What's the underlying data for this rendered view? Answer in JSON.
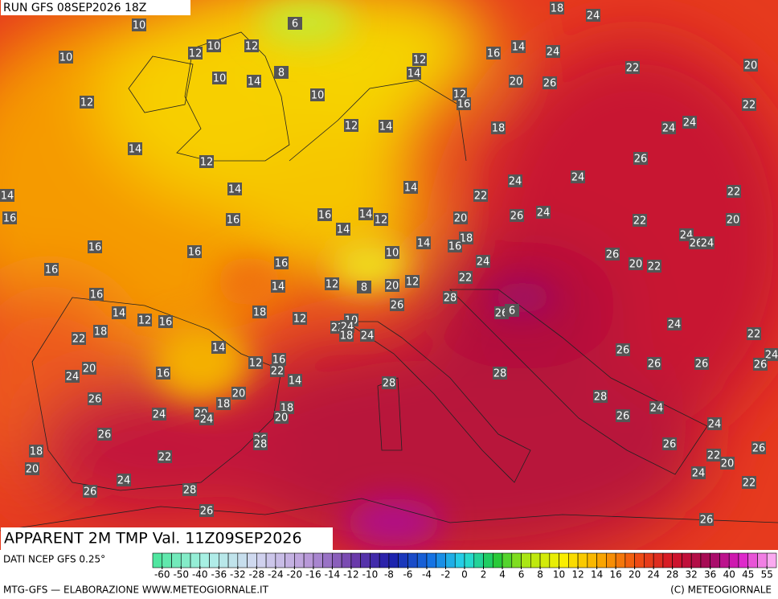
{
  "header": {
    "run": "RUN GFS 08SEP2026 18Z"
  },
  "map": {
    "title": "APPARENT 2M TMP Val. 11Z09SEP2026",
    "labels": [
      10,
      6,
      18,
      24,
      10,
      12,
      10,
      12,
      8,
      10,
      14,
      12,
      14,
      16,
      14,
      24,
      22,
      20,
      12,
      10,
      12,
      16,
      20,
      26,
      22,
      12,
      14,
      18,
      24,
      24,
      14,
      12,
      26,
      14,
      14,
      24,
      24,
      22,
      22,
      14,
      16,
      16,
      16,
      14,
      12,
      20,
      26,
      24,
      22,
      20,
      14,
      18,
      16,
      14,
      24,
      26,
      24,
      16,
      16,
      10,
      24,
      26,
      20,
      22,
      16,
      16,
      14,
      12,
      8,
      20,
      12,
      22,
      16,
      28,
      26,
      14,
      12,
      16,
      18,
      12,
      10,
      22,
      24,
      18,
      24,
      26,
      6,
      18,
      22,
      24,
      22,
      24,
      14,
      26,
      26,
      26,
      26,
      12,
      16,
      22,
      20,
      16,
      24,
      28,
      28,
      14,
      20,
      26,
      18,
      28,
      18,
      20,
      24,
      24,
      20,
      24,
      26,
      24,
      26,
      26,
      28,
      26,
      26,
      18,
      22,
      22,
      20,
      20,
      24,
      24,
      22,
      26,
      28,
      26,
      26
    ]
  },
  "colorbar": {
    "ticks": [
      -60,
      -50,
      -40,
      -36,
      -32,
      -28,
      -24,
      -20,
      -16,
      -14,
      -12,
      -10,
      -8,
      -6,
      -4,
      -2,
      0,
      2,
      4,
      6,
      8,
      10,
      12,
      14,
      16,
      20,
      24,
      28,
      32,
      36,
      40,
      45,
      55
    ]
  },
  "footer": {
    "source": "DATI NCEP GFS 0.25°",
    "credit": "MTG-GFS — ELABORAZIONE WWW.METEOGIORNALE.IT",
    "copyright": "(C) METEOGIORNALE"
  }
}
